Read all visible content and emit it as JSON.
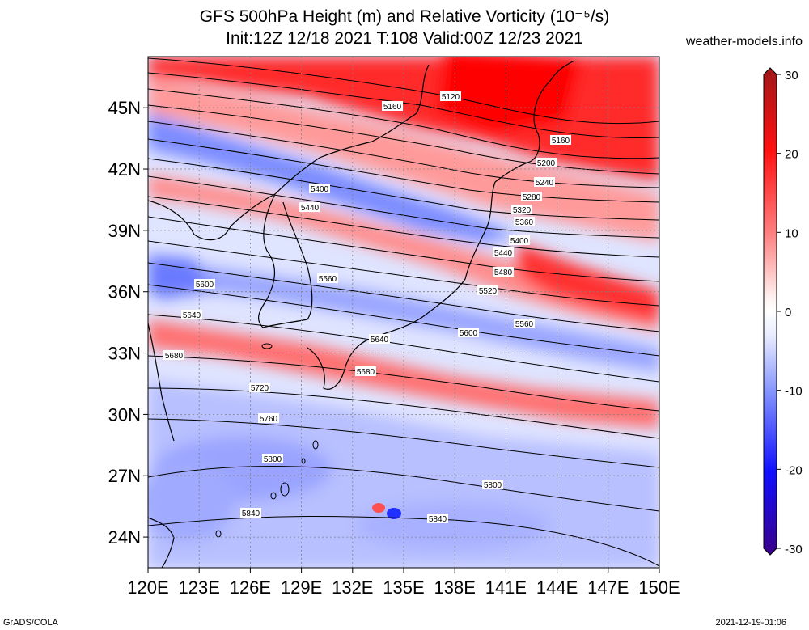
{
  "title": {
    "line1": "GFS 500hPa Height (m) and Relative Vorticity (10⁻⁵/s)",
    "line2": "Init:12Z 12/18 2021 T:108 Valid:00Z 12/23 2021"
  },
  "credit": "weather-models.info",
  "footer": {
    "left": "GrADS/COLA",
    "right": "2021-12-19-01:06"
  },
  "map": {
    "lon_range": [
      120,
      150
    ],
    "lat_range": [
      22.5,
      47.5
    ],
    "lat_ticks": [
      "45N",
      "42N",
      "39N",
      "36N",
      "33N",
      "30N",
      "27N",
      "24N"
    ],
    "lon_ticks": [
      "120E",
      "123E",
      "126E",
      "129E",
      "132E",
      "135E",
      "138E",
      "141E",
      "144E",
      "147E",
      "150E"
    ],
    "contour_labels": [
      "5120",
      "5160",
      "5160",
      "5200",
      "5240",
      "5280",
      "5320",
      "5360",
      "5400",
      "5400",
      "5440",
      "5440",
      "5480",
      "5520",
      "5560",
      "5560",
      "5600",
      "5600",
      "5640",
      "5640",
      "5680",
      "5680",
      "5720",
      "5760",
      "5800",
      "5800",
      "5840",
      "5840"
    ]
  },
  "colorbar": {
    "labels": [
      "30",
      "20",
      "10",
      "0",
      "-10",
      "-20",
      "-30"
    ],
    "colors": [
      "#b01010",
      "#ff0000",
      "#ff9a9a",
      "#ffffff",
      "#9aa8ff",
      "#0000ff",
      "#3a0090"
    ]
  }
}
